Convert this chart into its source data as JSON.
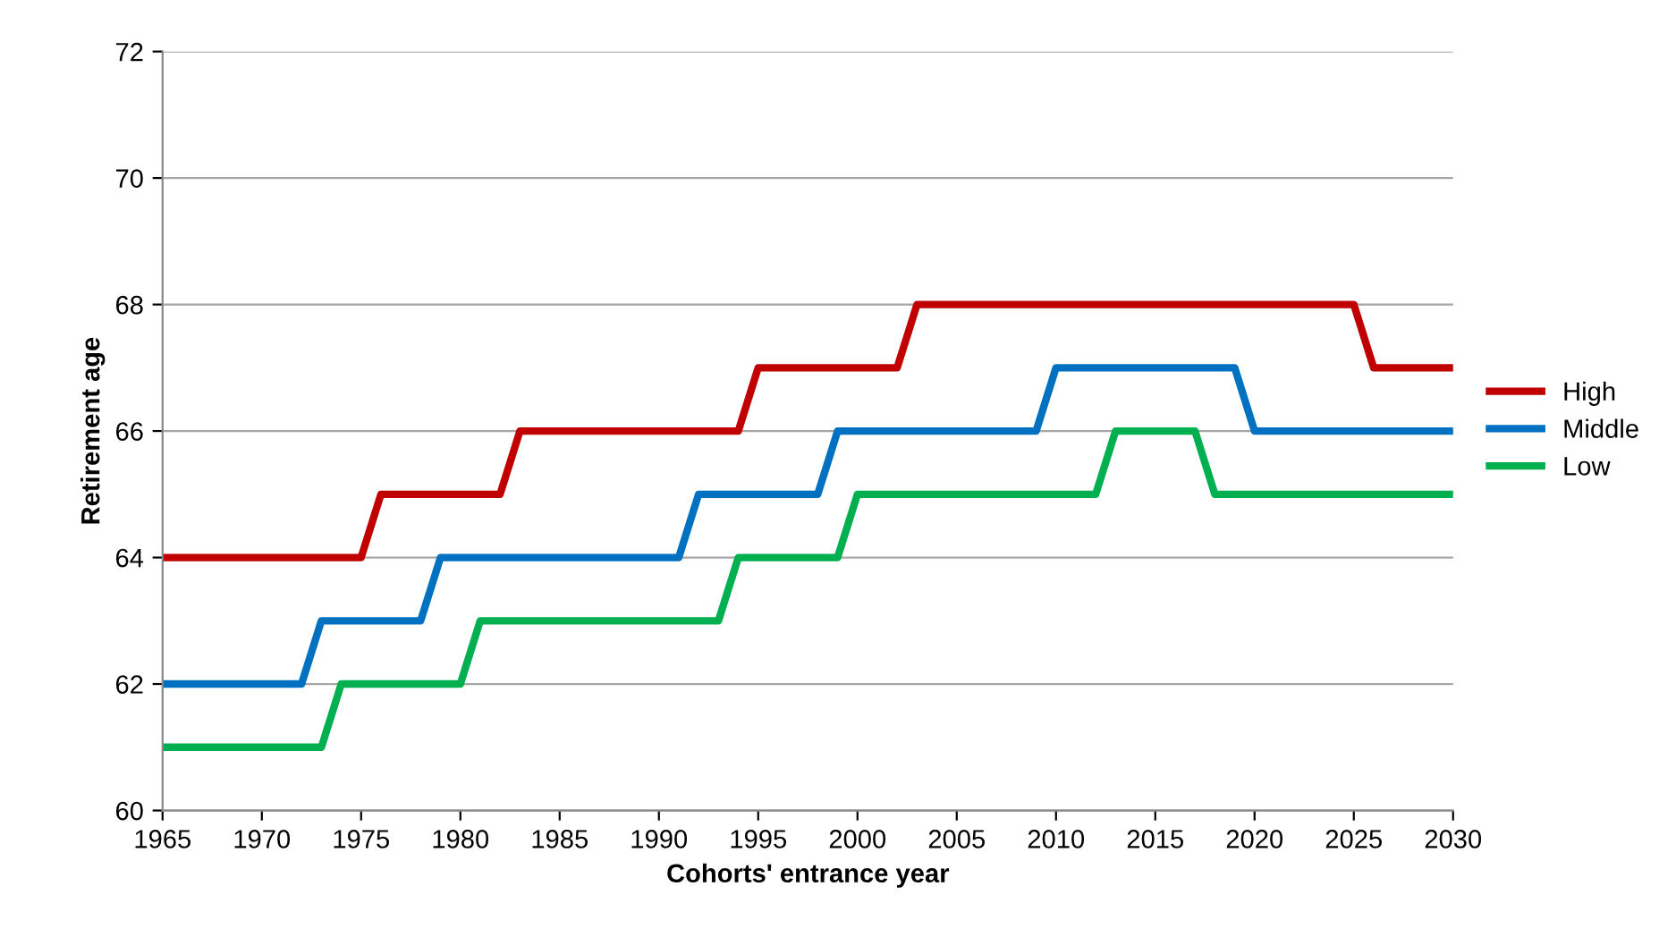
{
  "chart_data": {
    "type": "line",
    "xlabel": "Cohorts' entrance year",
    "ylabel": "Retirement age",
    "xlim": [
      1965,
      2030
    ],
    "xticks": [
      1965,
      1970,
      1975,
      1980,
      1985,
      1990,
      1995,
      2000,
      2005,
      2010,
      2015,
      2020,
      2025,
      2030
    ],
    "ylim": [
      60,
      72
    ],
    "yticks": [
      60,
      62,
      64,
      66,
      68,
      70,
      72
    ],
    "grid": "y",
    "legend": "right",
    "marker": "none",
    "line_style": "solid",
    "series": [
      {
        "name": "High",
        "color": "#c00000",
        "x": [
          1965,
          1975,
          1976,
          1982,
          1983,
          1994,
          1995,
          2002,
          2003,
          2025,
          2026,
          2030
        ],
        "values": [
          64,
          64,
          65,
          65,
          66,
          66,
          67,
          67,
          68,
          68,
          67,
          67
        ]
      },
      {
        "name": "Middle",
        "color": "#0070c0",
        "x": [
          1965,
          1972,
          1973,
          1978,
          1979,
          1991,
          1992,
          1998,
          1999,
          2009,
          2010,
          2019,
          2020,
          2030
        ],
        "values": [
          62,
          62,
          63,
          63,
          64,
          64,
          65,
          65,
          66,
          66,
          67,
          67,
          66,
          66
        ]
      },
      {
        "name": "Low",
        "color": "#00b050",
        "x": [
          1965,
          1973,
          1974,
          1980,
          1981,
          1993,
          1994,
          1999,
          2000,
          2012,
          2013,
          2017,
          2018,
          2030
        ],
        "values": [
          61,
          61,
          62,
          62,
          63,
          63,
          64,
          64,
          65,
          65,
          66,
          66,
          65,
          65
        ]
      }
    ]
  }
}
